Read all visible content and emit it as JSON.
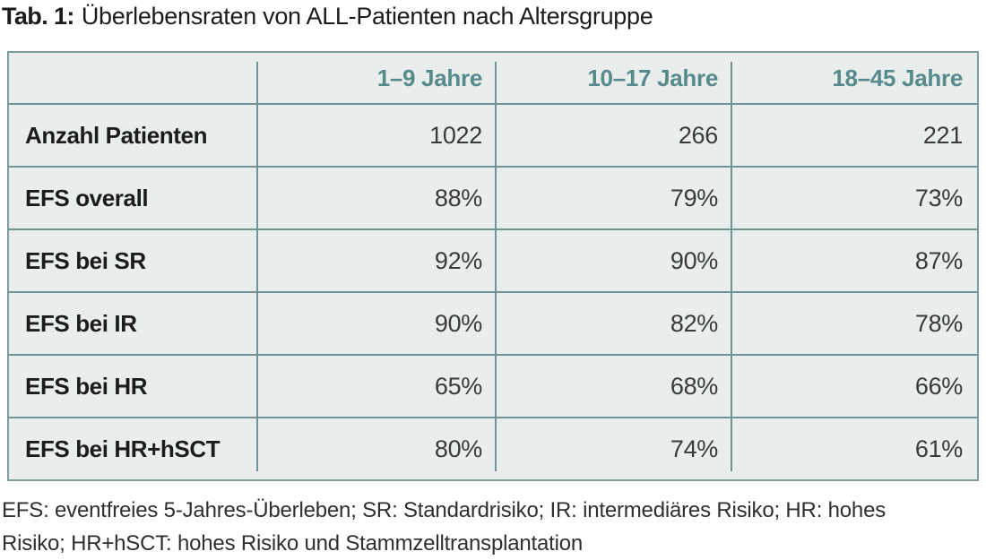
{
  "title": {
    "prefix": "Tab. 1:",
    "text": "Überlebensraten von ALL-Patienten nach Altersgruppe"
  },
  "colors": {
    "table_background": "#e9edec",
    "grid_line": "#6f9292",
    "outer_border": "#7d9c9c",
    "header_text": "#578b8b",
    "label_text": "#1c1c1a",
    "value_text": "#3a3a38"
  },
  "table": {
    "columns": [
      "",
      "1–9 Jahre",
      "10–17 Jahre",
      "18–45 Jahre"
    ],
    "rows": [
      {
        "label": "Anzahl Patienten",
        "values": [
          "1022",
          "266",
          "221"
        ]
      },
      {
        "label": "EFS overall",
        "values": [
          "88%",
          "79%",
          "73%"
        ]
      },
      {
        "label": "EFS bei SR",
        "values": [
          "92%",
          "90%",
          "87%"
        ]
      },
      {
        "label": "EFS bei IR",
        "values": [
          "90%",
          "82%",
          "78%"
        ]
      },
      {
        "label": "EFS bei HR",
        "values": [
          "65%",
          "68%",
          "66%"
        ]
      },
      {
        "label": "EFS bei HR+hSCT",
        "values": [
          "80%",
          "74%",
          "61%"
        ]
      }
    ]
  },
  "footnote": {
    "lines": [
      "EFS: eventfreies 5-Jahres-Überleben; SR: Standardrisiko; IR: intermediäres Risiko; HR: hohes",
      "Risiko; HR+hSCT: hohes Risiko und Stammzelltransplantation"
    ]
  },
  "chart_data": {
    "type": "table",
    "title": "Tab. 1: Überlebensraten von ALL-Patienten nach Altersgruppe",
    "columns": [
      "1–9 Jahre",
      "10–17 Jahre",
      "18–45 Jahre"
    ],
    "rows": [
      {
        "label": "Anzahl Patienten",
        "values": [
          1022,
          266,
          221
        ],
        "unit": "count"
      },
      {
        "label": "EFS overall",
        "values": [
          88,
          79,
          73
        ],
        "unit": "%"
      },
      {
        "label": "EFS bei SR",
        "values": [
          92,
          90,
          87
        ],
        "unit": "%"
      },
      {
        "label": "EFS bei IR",
        "values": [
          90,
          82,
          78
        ],
        "unit": "%"
      },
      {
        "label": "EFS bei HR",
        "values": [
          65,
          68,
          66
        ],
        "unit": "%"
      },
      {
        "label": "EFS bei HR+hSCT",
        "values": [
          80,
          74,
          61
        ],
        "unit": "%"
      }
    ],
    "footnote": "EFS: eventfreies 5-Jahres-Überleben; SR: Standardrisiko; IR: intermediäres Risiko; HR: hohes Risiko; HR+hSCT: hohes Risiko und Stammzelltransplantation"
  }
}
